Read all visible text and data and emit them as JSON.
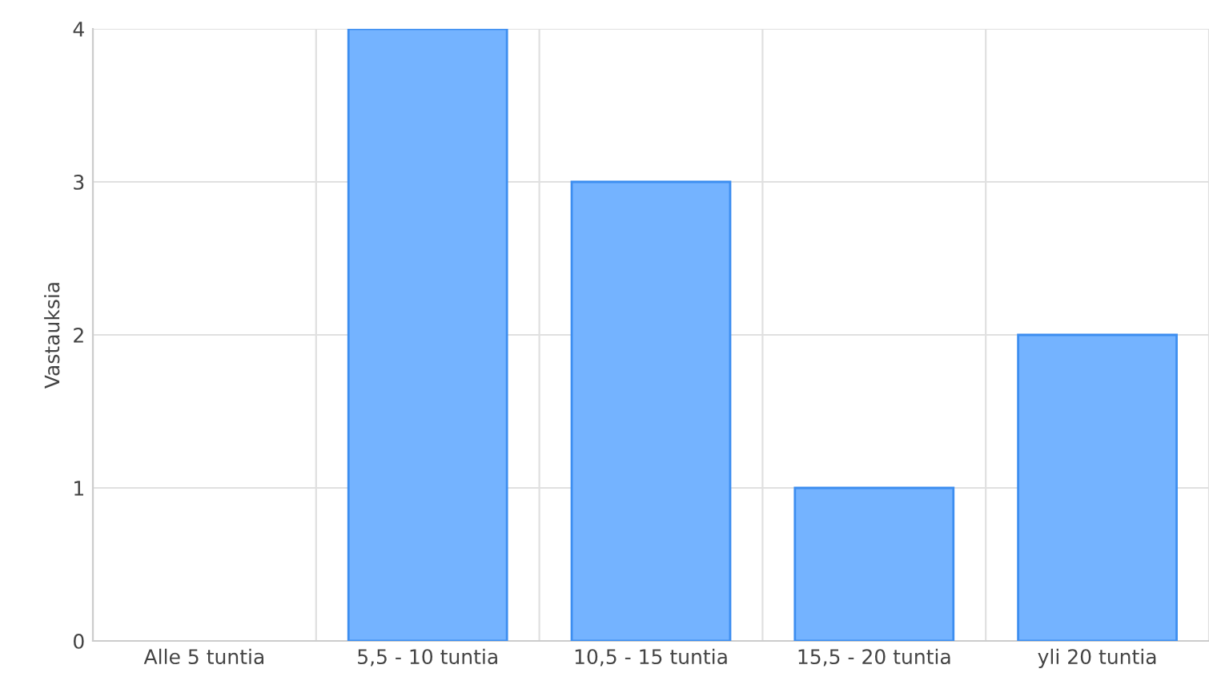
{
  "chart_data": {
    "type": "bar",
    "ylabel": "Vastauksia",
    "categories": [
      "Alle 5 tuntia",
      "5,5 - 10 tuntia",
      "10,5 - 15 tuntia",
      "15,5 - 20 tuntia",
      "yli 20 tuntia"
    ],
    "values": [
      0,
      4,
      3,
      1,
      2
    ],
    "color": "#74b3ff",
    "ylim": [
      0,
      4
    ],
    "yticks": [
      0,
      1,
      2,
      3,
      4
    ],
    "grid": true,
    "legend": false
  }
}
